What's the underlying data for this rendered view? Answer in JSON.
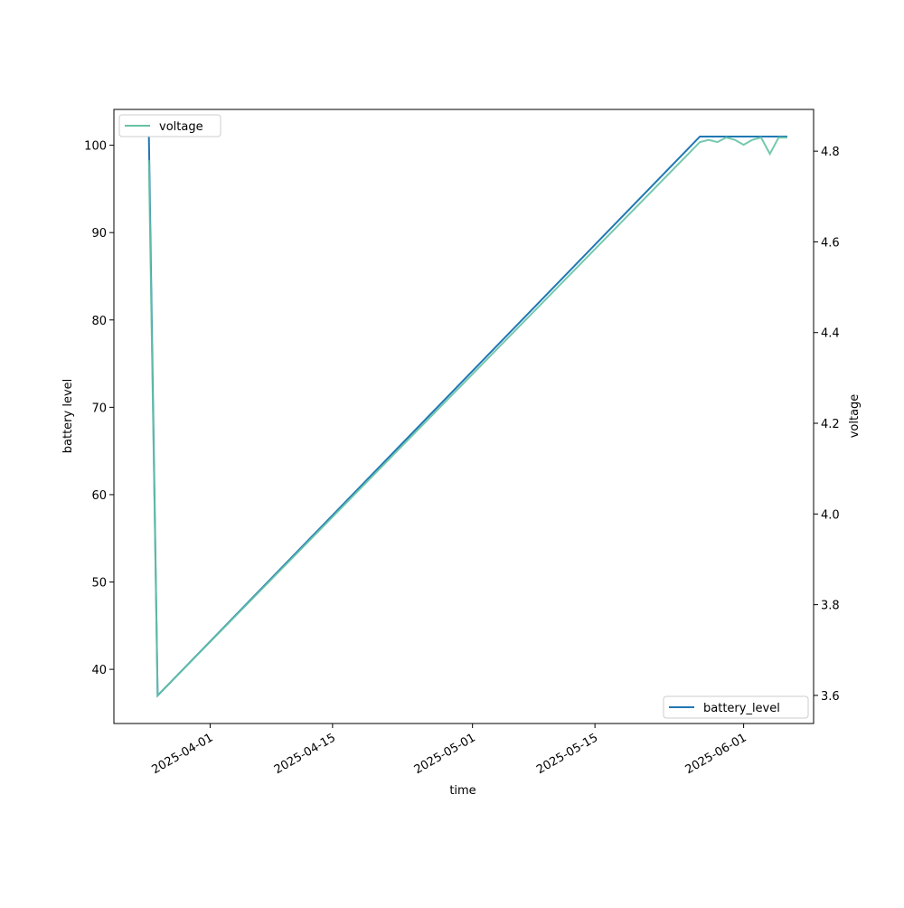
{
  "chart_data": {
    "type": "line",
    "x_label": "time",
    "y_label": "battery level",
    "y2_label": "voltage",
    "x": [
      "2025-03-25",
      "2025-03-26",
      "2025-05-27",
      "2025-05-28",
      "2025-05-29",
      "2025-05-30",
      "2025-05-31",
      "2025-06-01",
      "2025-06-02",
      "2025-06-03",
      "2025-06-04",
      "2025-06-05",
      "2025-06-06"
    ],
    "series": [
      {
        "name": "battery_level",
        "color": "#1f77b4",
        "axis": "y",
        "legend": "lower right",
        "values": [
          101,
          37,
          101,
          101,
          101,
          101,
          101,
          101,
          101,
          101,
          101,
          101,
          101
        ]
      },
      {
        "name": "voltage",
        "color": "#66c2a5",
        "axis": "y2",
        "legend": "upper left",
        "values": [
          4.78,
          3.6,
          4.82,
          4.825,
          4.82,
          4.83,
          4.825,
          4.814,
          4.825,
          4.83,
          4.794,
          4.83,
          4.83
        ]
      }
    ],
    "xlim": [
      "2025-03-21",
      "2025-06-09"
    ],
    "xticks": [
      "2025-04-01",
      "2025-04-15",
      "2025-05-01",
      "2025-05-15",
      "2025-06-01"
    ],
    "ylim": [
      33.8,
      104.1
    ],
    "yticks": [
      40,
      50,
      60,
      70,
      80,
      90,
      100
    ],
    "y2lim": [
      3.538,
      4.892
    ],
    "y2ticks": [
      3.6,
      3.8,
      {
        "value": 4,
        "label": "4.0"
      },
      4.2,
      4.4,
      4.6,
      4.8
    ]
  }
}
